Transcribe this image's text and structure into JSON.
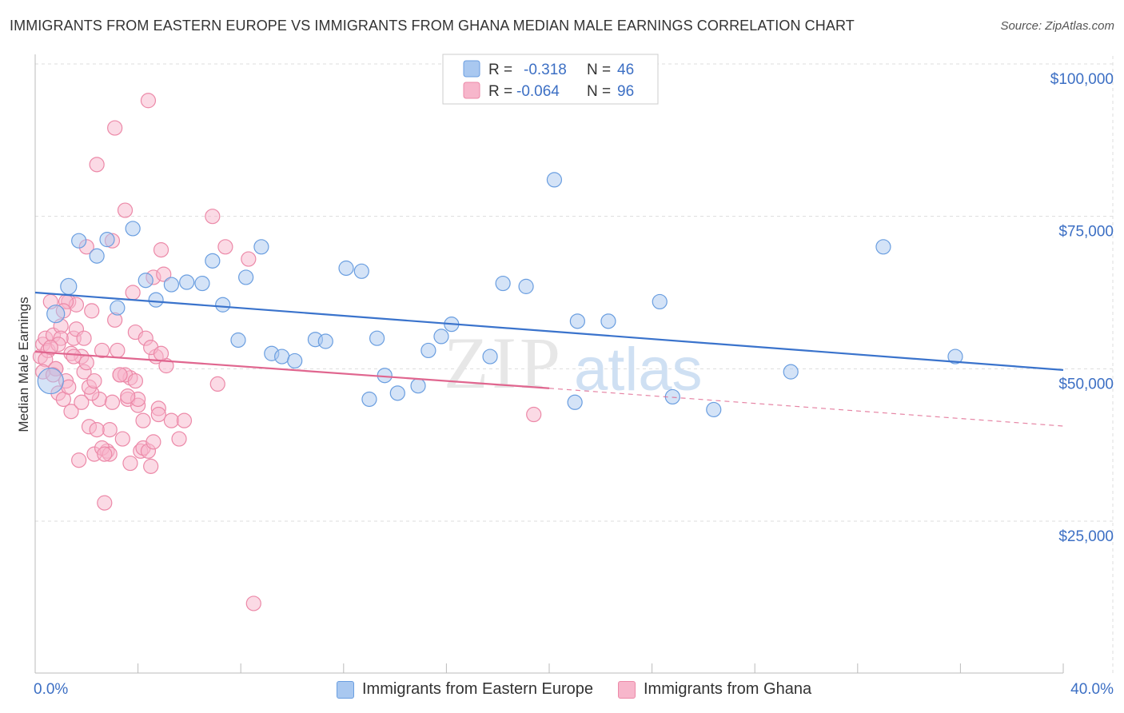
{
  "title": "IMMIGRANTS FROM EASTERN EUROPE VS IMMIGRANTS FROM GHANA MEDIAN MALE EARNINGS CORRELATION CHART",
  "source": "Source: ZipAtlas.com",
  "watermark": {
    "zip": "ZIP",
    "atlas": "atlas"
  },
  "colors": {
    "blue_fill": "#a9c8f0",
    "blue_stroke": "#6a9ee0",
    "blue_line": "#3a73cc",
    "pink_fill": "#f7b6cb",
    "pink_stroke": "#ec89a8",
    "pink_line": "#e0668f",
    "axis_text": "#3c6fc4",
    "grid": "#dddddd"
  },
  "legend": {
    "rows": [
      {
        "series": "Immigrants from Eastern Europe",
        "r_label": "R =",
        "r_value": "-0.318",
        "n_label": "N =",
        "n_value": "46"
      },
      {
        "series": "Immigrants from Ghana",
        "r_label": "R =",
        "r_value": "-0.064",
        "n_label": "N =",
        "n_value": "96"
      }
    ]
  },
  "bottom_legend": [
    "Immigrants from Eastern Europe",
    "Immigrants from Ghana"
  ],
  "x_axis": {
    "min_label": "0.0%",
    "max_label": "40.0%"
  },
  "chart_data": {
    "type": "scatter",
    "title": "IMMIGRANTS FROM EASTERN EUROPE VS IMMIGRANTS FROM GHANA MEDIAN MALE EARNINGS CORRELATION CHART",
    "xlabel": "",
    "ylabel": "Median Male Earnings",
    "xlim": [
      0,
      40
    ],
    "ylim": [
      0,
      104000
    ],
    "y_ticks": [
      {
        "value": 25000,
        "label": "$25,000"
      },
      {
        "value": 50000,
        "label": "$50,000"
      },
      {
        "value": 75000,
        "label": "$75,000"
      },
      {
        "value": 100000,
        "label": "$100,000"
      }
    ],
    "series": [
      {
        "name": "Immigrants from Eastern Europe",
        "color": "blue",
        "trend": {
          "x": [
            0,
            40
          ],
          "y": [
            62500,
            49800
          ],
          "dashed_to": null
        },
        "points": [
          [
            0.6,
            48000,
            16
          ],
          [
            0.8,
            59000,
            11
          ],
          [
            1.3,
            63500,
            10
          ],
          [
            1.7,
            71000,
            9
          ],
          [
            2.4,
            68500,
            9
          ],
          [
            2.8,
            71200,
            9
          ],
          [
            3.2,
            60000,
            9
          ],
          [
            3.8,
            73000,
            9
          ],
          [
            4.3,
            64500,
            9
          ],
          [
            4.7,
            61300,
            9
          ],
          [
            5.3,
            63800,
            9
          ],
          [
            5.9,
            64200,
            9
          ],
          [
            6.5,
            64000,
            9
          ],
          [
            6.9,
            67700,
            9
          ],
          [
            7.3,
            60500,
            9
          ],
          [
            7.9,
            54700,
            9
          ],
          [
            8.2,
            65000,
            9
          ],
          [
            8.8,
            70000,
            9
          ],
          [
            9.2,
            52500,
            9
          ],
          [
            9.6,
            52000,
            9
          ],
          [
            10.1,
            51300,
            9
          ],
          [
            10.9,
            54800,
            9
          ],
          [
            11.3,
            54500,
            9
          ],
          [
            12.1,
            66500,
            9
          ],
          [
            12.7,
            66000,
            9
          ],
          [
            13.0,
            45000,
            9
          ],
          [
            13.3,
            55000,
            9
          ],
          [
            13.6,
            48900,
            9
          ],
          [
            14.1,
            46000,
            9
          ],
          [
            14.9,
            47200,
            9
          ],
          [
            15.3,
            53000,
            9
          ],
          [
            15.8,
            55300,
            9
          ],
          [
            16.2,
            57300,
            9
          ],
          [
            17.7,
            52000,
            9
          ],
          [
            18.2,
            64000,
            9
          ],
          [
            19.1,
            63500,
            9
          ],
          [
            20.2,
            81000,
            9
          ],
          [
            21.1,
            57800,
            9
          ],
          [
            21.0,
            44500,
            9
          ],
          [
            22.3,
            57800,
            9
          ],
          [
            24.3,
            61000,
            9
          ],
          [
            24.8,
            45400,
            9
          ],
          [
            26.4,
            43300,
            9
          ],
          [
            29.4,
            49500,
            9
          ],
          [
            33.0,
            70000,
            9
          ],
          [
            35.8,
            52000,
            9
          ]
        ]
      },
      {
        "name": "Immigrants from Ghana",
        "color": "pink",
        "trend": {
          "x": [
            0,
            20
          ],
          "y": [
            52800,
            46800
          ],
          "dashed_to": {
            "x": 40,
            "y": 40600
          }
        },
        "points": [
          [
            0.2,
            52000
          ],
          [
            0.3,
            54000
          ],
          [
            0.4,
            55000
          ],
          [
            0.5,
            53000
          ],
          [
            0.6,
            61000
          ],
          [
            0.7,
            55500
          ],
          [
            0.8,
            50000
          ],
          [
            0.9,
            46000
          ],
          [
            1.0,
            57000
          ],
          [
            1.1,
            45000
          ],
          [
            1.2,
            48000
          ],
          [
            1.3,
            61000
          ],
          [
            1.4,
            43000
          ],
          [
            1.5,
            55000
          ],
          [
            1.6,
            60500
          ],
          [
            1.7,
            35000
          ],
          [
            1.8,
            52000
          ],
          [
            1.9,
            49500
          ],
          [
            2.0,
            70000
          ],
          [
            2.1,
            40500
          ],
          [
            2.2,
            59500
          ],
          [
            2.3,
            36000
          ],
          [
            2.4,
            83500
          ],
          [
            2.5,
            45000
          ],
          [
            2.6,
            53000
          ],
          [
            2.7,
            28000
          ],
          [
            2.8,
            36500
          ],
          [
            2.9,
            40000
          ],
          [
            3.0,
            71000
          ],
          [
            3.1,
            89500
          ],
          [
            3.2,
            53000
          ],
          [
            3.3,
            49000
          ],
          [
            3.4,
            38500
          ],
          [
            3.5,
            76000
          ],
          [
            3.6,
            45000
          ],
          [
            3.7,
            48500
          ],
          [
            3.8,
            62500
          ],
          [
            3.9,
            56000
          ],
          [
            4.0,
            44000
          ],
          [
            4.1,
            36500
          ],
          [
            4.2,
            41500
          ],
          [
            4.3,
            55000
          ],
          [
            4.4,
            94000
          ],
          [
            4.5,
            34000
          ],
          [
            4.6,
            65000
          ],
          [
            4.7,
            52000
          ],
          [
            4.8,
            43500
          ],
          [
            4.9,
            69500
          ],
          [
            5.1,
            50500
          ],
          [
            5.3,
            41500
          ],
          [
            5.6,
            38500
          ],
          [
            6.9,
            75000
          ],
          [
            7.1,
            47500
          ],
          [
            7.4,
            70000
          ],
          [
            8.3,
            68000
          ],
          [
            8.5,
            11500
          ],
          [
            19.4,
            42500
          ],
          [
            1.0,
            55000
          ],
          [
            0.4,
            51500
          ],
          [
            0.8,
            50000
          ],
          [
            1.2,
            61000
          ],
          [
            1.6,
            56500
          ],
          [
            2.0,
            51000
          ],
          [
            2.6,
            37000
          ],
          [
            3.0,
            44500
          ],
          [
            3.5,
            49000
          ],
          [
            4.0,
            45000
          ],
          [
            4.5,
            53500
          ],
          [
            5.0,
            65500
          ],
          [
            1.4,
            52500
          ],
          [
            0.9,
            54000
          ],
          [
            2.2,
            46000
          ],
          [
            2.9,
            36000
          ],
          [
            3.7,
            34500
          ],
          [
            4.2,
            37000
          ],
          [
            4.8,
            42500
          ],
          [
            1.1,
            59500
          ],
          [
            1.8,
            44500
          ],
          [
            2.4,
            40000
          ],
          [
            3.3,
            49000
          ],
          [
            0.6,
            53500
          ],
          [
            1.5,
            52000
          ],
          [
            2.1,
            47000
          ],
          [
            2.7,
            36000
          ],
          [
            3.9,
            48000
          ],
          [
            4.4,
            36500
          ],
          [
            0.3,
            49500
          ],
          [
            1.9,
            55000
          ],
          [
            3.1,
            58000
          ],
          [
            4.9,
            52500
          ],
          [
            5.8,
            41500
          ],
          [
            2.3,
            48000
          ],
          [
            1.3,
            47000
          ],
          [
            0.7,
            49000
          ],
          [
            3.6,
            45500
          ],
          [
            4.6,
            38000
          ]
        ]
      }
    ]
  }
}
